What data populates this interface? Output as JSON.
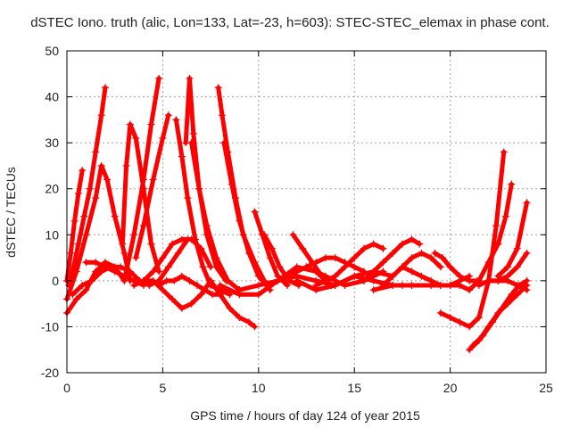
{
  "chart_data": {
    "type": "scatter",
    "title": "dSTEC Iono. truth (alic, Lon=133, Lat=-23, h=603): STEC-STEC_elemax in phase cont.",
    "xlabel": "GPS time / hours of day 124 of year 2015",
    "ylabel": "dSTEC  / TECUs",
    "xlim": [
      0,
      25
    ],
    "ylim": [
      -20,
      50
    ],
    "xticks": [
      0,
      5,
      10,
      15,
      20,
      25
    ],
    "yticks": [
      -20,
      -10,
      0,
      10,
      20,
      30,
      40,
      50
    ],
    "grid": true,
    "marker": "plus",
    "color": "#ff0000",
    "series": [
      {
        "x": [
          0.0,
          0.2,
          0.4,
          0.6,
          0.8
        ],
        "y": [
          0,
          6,
          13,
          19,
          24
        ]
      },
      {
        "x": [
          0.1,
          0.3,
          0.6,
          0.9,
          1.2,
          1.5,
          1.8,
          2.0
        ],
        "y": [
          -1,
          2,
          8,
          14,
          20,
          28,
          36,
          42
        ]
      },
      {
        "x": [
          0.0,
          0.5,
          1.0,
          1.5,
          1.8,
          2.1,
          2.5,
          3.0,
          3.3
        ],
        "y": [
          -4,
          2,
          10,
          18,
          25,
          22,
          14,
          6,
          0
        ]
      },
      {
        "x": [
          2.9,
          3.1,
          3.3,
          3.6,
          4.0,
          4.4,
          4.8
        ],
        "y": [
          8,
          25,
          34,
          31,
          20,
          8,
          2
        ]
      },
      {
        "x": [
          3.0,
          3.5,
          4.0,
          4.4,
          4.8
        ],
        "y": [
          0,
          10,
          22,
          34,
          44
        ]
      },
      {
        "x": [
          3.6,
          4.0,
          4.5,
          5.0,
          5.3
        ],
        "y": [
          5,
          12,
          22,
          31,
          36
        ]
      },
      {
        "x": [
          5.7,
          6.0,
          6.3,
          6.7,
          7.1,
          7.5,
          8.0,
          8.5
        ],
        "y": [
          35,
          27,
          18,
          9,
          3,
          -1,
          -2,
          -3
        ]
      },
      {
        "x": [
          6.2,
          6.4,
          6.6,
          6.9,
          7.3,
          7.8,
          8.3
        ],
        "y": [
          30,
          44,
          32,
          20,
          10,
          3,
          0
        ]
      },
      {
        "x": [
          6.5,
          6.9,
          7.3,
          7.8,
          8.4,
          9.0
        ],
        "y": [
          30,
          20,
          12,
          5,
          0,
          -2
        ]
      },
      {
        "x": [
          7.9,
          8.1,
          8.4,
          8.8,
          9.2,
          9.8,
          10.3
        ],
        "y": [
          42,
          36,
          28,
          18,
          10,
          4,
          0
        ]
      },
      {
        "x": [
          8.2,
          8.6,
          9.0,
          9.5,
          10.0,
          10.6
        ],
        "y": [
          30,
          21,
          13,
          6,
          1,
          -2
        ]
      },
      {
        "x": [
          9.8,
          10.2,
          10.6,
          11.0,
          11.5
        ],
        "y": [
          15,
          10,
          5,
          1,
          -1
        ]
      },
      {
        "x": [
          10.3,
          10.7,
          11.1,
          11.6,
          12.1
        ],
        "y": [
          10,
          7,
          3,
          0,
          -1
        ]
      },
      {
        "x": [
          11.8,
          12.3,
          12.8,
          13.3,
          13.8
        ],
        "y": [
          10,
          7,
          4,
          1,
          -1
        ]
      },
      {
        "x": [
          0.0,
          0.5,
          1.0,
          1.5,
          2.0,
          2.5,
          3.0
        ],
        "y": [
          -7,
          -4,
          -2,
          2,
          4,
          3,
          0
        ]
      },
      {
        "x": [
          0.3,
          0.8,
          1.3,
          1.8,
          2.3,
          2.8,
          3.3,
          3.8,
          4.3,
          4.8,
          5.3,
          5.8,
          6.3
        ],
        "y": [
          -3,
          -1,
          0,
          2,
          3,
          3,
          2,
          0,
          -1,
          0,
          3,
          6,
          9
        ]
      },
      {
        "x": [
          1.0,
          1.5,
          2.0,
          2.5,
          3.0,
          3.5,
          4.0
        ],
        "y": [
          4,
          4,
          3,
          2,
          1,
          0,
          -1
        ]
      },
      {
        "x": [
          3.5,
          4.0,
          4.5,
          5.0,
          5.5,
          6.0,
          6.5,
          7.0,
          7.5
        ],
        "y": [
          -1,
          0,
          2,
          5,
          8,
          9,
          9,
          7,
          3
        ]
      },
      {
        "x": [
          4.8,
          5.2,
          5.6,
          6.0,
          6.4,
          6.8,
          7.2,
          7.6,
          8.0
        ],
        "y": [
          -1,
          0,
          0,
          1,
          0,
          -1,
          -2,
          -3,
          -3
        ]
      },
      {
        "x": [
          4.0,
          4.5,
          5.0,
          5.5,
          6.0,
          6.5,
          7.0,
          7.5
        ],
        "y": [
          0,
          0,
          -2,
          -4,
          -6,
          -5,
          -3,
          0
        ]
      },
      {
        "x": [
          7.5,
          8.0,
          8.5,
          9.0,
          9.5,
          9.8
        ],
        "y": [
          0,
          -3,
          -6,
          -8,
          -9,
          -10
        ]
      },
      {
        "x": [
          8.0,
          9.0,
          10.0,
          11.0,
          12.0,
          13.0,
          13.5
        ],
        "y": [
          -1,
          -3,
          -3,
          0,
          3,
          2,
          0
        ]
      },
      {
        "x": [
          9.0,
          10.0,
          11.0,
          12.0,
          13.0,
          14.0,
          15.0,
          16.0,
          17.0
        ],
        "y": [
          -2,
          -1,
          0,
          1,
          0,
          -1,
          1,
          2,
          1
        ]
      },
      {
        "x": [
          10.5,
          11.5,
          12.5,
          13.5,
          14.5,
          15.5,
          16.5
        ],
        "y": [
          -1,
          1,
          3,
          1,
          -1,
          0,
          2
        ]
      },
      {
        "x": [
          12.5,
          13.0,
          13.5,
          14.0,
          14.5,
          15.0,
          15.5
        ],
        "y": [
          3,
          4,
          5,
          5,
          4,
          3,
          2
        ]
      },
      {
        "x": [
          13.0,
          13.5,
          14.0,
          14.5,
          15.0,
          15.5,
          16.0,
          16.5
        ],
        "y": [
          -1,
          0,
          1,
          3,
          5,
          7,
          8,
          7
        ]
      },
      {
        "x": [
          12.0,
          13.0,
          14.0,
          15.0,
          16.0,
          17.0,
          17.5
        ],
        "y": [
          0,
          -2,
          -1,
          1,
          0,
          -1,
          -1
        ]
      },
      {
        "x": [
          15.5,
          16.0,
          16.5,
          17.0,
          17.5,
          18.0,
          18.4
        ],
        "y": [
          0,
          2,
          4,
          6,
          8,
          9,
          8
        ]
      },
      {
        "x": [
          16.5,
          17.0,
          17.5,
          18.0,
          18.5,
          19.0,
          19.5
        ],
        "y": [
          -1,
          1,
          3,
          5,
          6,
          5,
          3
        ]
      },
      {
        "x": [
          16.0,
          17.0,
          18.0,
          19.0,
          19.5
        ],
        "y": [
          -2,
          -1,
          -1,
          -1,
          -1
        ]
      },
      {
        "x": [
          17.5,
          18.0,
          18.5,
          19.0,
          19.5,
          20.0,
          20.5,
          21.0
        ],
        "y": [
          3,
          2,
          1,
          0,
          -1,
          -1,
          0,
          1
        ]
      },
      {
        "x": [
          19.2,
          19.6,
          20.0,
          20.5,
          21.0,
          21.4
        ],
        "y": [
          6,
          5,
          3,
          1,
          0,
          0
        ]
      },
      {
        "x": [
          19.5,
          20.0,
          20.5,
          21.0,
          21.5,
          22.0,
          22.4,
          22.8
        ],
        "y": [
          -7,
          -8,
          -9,
          -10,
          -8,
          0,
          12,
          28
        ]
      },
      {
        "x": [
          20.0,
          20.5,
          21.0,
          21.5,
          22.0,
          22.5,
          22.9,
          23.2
        ],
        "y": [
          -1,
          -1,
          -2,
          0,
          4,
          8,
          14,
          21
        ]
      },
      {
        "x": [
          21.0,
          21.5,
          22.0,
          22.5,
          23.0,
          23.5,
          24.0
        ],
        "y": [
          -15,
          -13,
          -10,
          -7,
          -5,
          -3,
          -1
        ]
      },
      {
        "x": [
          21.2,
          21.7,
          22.2,
          22.7,
          23.2,
          23.6,
          24.0
        ],
        "y": [
          -14,
          -12,
          -9,
          -6,
          -3,
          -1,
          0
        ]
      },
      {
        "x": [
          21.5,
          22.0,
          22.5,
          23.0,
          23.5,
          24.0
        ],
        "y": [
          -1,
          0,
          0,
          1,
          3,
          6
        ]
      },
      {
        "x": [
          22.5,
          23.0,
          23.5,
          24.0
        ],
        "y": [
          1,
          3,
          7,
          17
        ]
      },
      {
        "x": [
          22.0,
          22.5,
          23.0,
          23.5,
          24.0
        ],
        "y": [
          0,
          0,
          0,
          -1,
          -2
        ]
      }
    ]
  }
}
